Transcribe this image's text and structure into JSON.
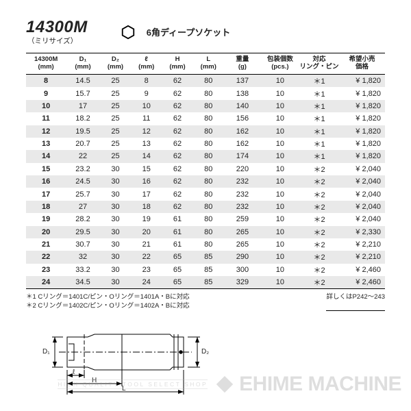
{
  "header": {
    "model": "14300M",
    "subtitle": "（ミリサイズ）",
    "product_name": "6角ディープソケット"
  },
  "table": {
    "columns": [
      "14300M\n(mm)",
      "D₁\n(mm)",
      "D₂\n(mm)",
      "ℓ\n(mm)",
      "H\n(mm)",
      "L\n(mm)",
      "重量\n(g)",
      "包装個数\n(pcs.)",
      "対応\nリング・ピン",
      "希望小売\n価格"
    ],
    "rows": [
      [
        "8",
        "14.5",
        "25",
        "8",
        "62",
        "80",
        "137",
        "10",
        "＊1",
        "¥ 1,820"
      ],
      [
        "9",
        "15.7",
        "25",
        "9",
        "62",
        "80",
        "138",
        "10",
        "＊1",
        "¥ 1,820"
      ],
      [
        "10",
        "17",
        "25",
        "10",
        "62",
        "80",
        "140",
        "10",
        "＊1",
        "¥ 1,820"
      ],
      [
        "11",
        "18.2",
        "25",
        "11",
        "62",
        "80",
        "156",
        "10",
        "＊1",
        "¥ 1,820"
      ],
      [
        "12",
        "19.5",
        "25",
        "12",
        "62",
        "80",
        "162",
        "10",
        "＊1",
        "¥ 1,820"
      ],
      [
        "13",
        "20.7",
        "25",
        "13",
        "62",
        "80",
        "162",
        "10",
        "＊1",
        "¥ 1,820"
      ],
      [
        "14",
        "22",
        "25",
        "14",
        "62",
        "80",
        "174",
        "10",
        "＊1",
        "¥ 1,820"
      ],
      [
        "15",
        "23.2",
        "30",
        "15",
        "62",
        "80",
        "220",
        "10",
        "＊2",
        "¥ 2,040"
      ],
      [
        "16",
        "24.5",
        "30",
        "16",
        "62",
        "80",
        "232",
        "10",
        "＊2",
        "¥ 2,040"
      ],
      [
        "17",
        "25.7",
        "30",
        "17",
        "62",
        "80",
        "232",
        "10",
        "＊2",
        "¥ 2,040"
      ],
      [
        "18",
        "27",
        "30",
        "18",
        "62",
        "80",
        "232",
        "10",
        "＊2",
        "¥ 2,040"
      ],
      [
        "19",
        "28.2",
        "30",
        "19",
        "61",
        "80",
        "259",
        "10",
        "＊2",
        "¥ 2,040"
      ],
      [
        "20",
        "29.5",
        "30",
        "20",
        "61",
        "80",
        "265",
        "10",
        "＊2",
        "¥ 2,330"
      ],
      [
        "21",
        "30.7",
        "30",
        "21",
        "61",
        "80",
        "265",
        "10",
        "＊2",
        "¥ 2,210"
      ],
      [
        "22",
        "32",
        "30",
        "22",
        "65",
        "85",
        "290",
        "10",
        "＊2",
        "¥ 2,210"
      ],
      [
        "23",
        "33.2",
        "30",
        "23",
        "65",
        "85",
        "300",
        "10",
        "＊2",
        "¥ 2,460"
      ],
      [
        "24",
        "34.5",
        "30",
        "24",
        "65",
        "85",
        "329",
        "10",
        "＊2",
        "¥ 2,460"
      ]
    ],
    "alt_row_bg": "#e9e9e9"
  },
  "footnotes": {
    "note1": "＊1 Cリング＝1401C/ピン・Oリング＝1401A・Bに対応",
    "note2": "＊2 Cリング＝1402C/ピン・Oリング＝1402A・Bに対応",
    "detail_ref": "詳しくはP242～243"
  },
  "diagram": {
    "labels": {
      "D1": "D₁",
      "D2": "D₂",
      "l": "ℓ",
      "H": "H",
      "L": "L"
    },
    "stroke": "#000000"
  },
  "watermark": {
    "tagline": "HIGH QUALITY TOOL SELECT SHOP",
    "brand": "EHIME MACHINE"
  }
}
